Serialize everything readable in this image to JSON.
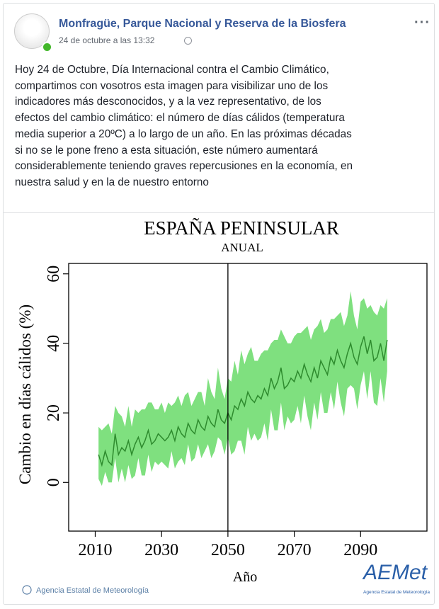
{
  "post": {
    "author": "Monfragüe, Parque Nacional y Reserva de la Biosfera",
    "date": "24 de octubre a las 13:32",
    "text_lines": [
      "Hoy 24 de Octubre, Día Internacional contra el Cambio Climático,",
      "compartimos con vosotros esta imagen para visibilizar uno de los",
      "indicadores más desconocidos, y a la vez representativo, de los",
      "efectos del cambio climático: el número de días cálidos (temperatura",
      "media superior a 20ºC) a lo largo de un año. En las próximas décadas",
      "si no se le pone freno a esta situación, este número aumentará",
      "considerablemente teniendo graves repercusiones en la economía, en",
      "nuestra salud y en la de nuestro entorno"
    ]
  },
  "chart_data": {
    "type": "line",
    "title": "ESPAÑA PENINSULAR",
    "subtitle": "ANUAL",
    "ylabel": "Cambio en días cálidos (%)",
    "xlabel": "Año",
    "footer": "Agencia Estatal de Meteorología",
    "logo": "AEMet",
    "logo_caption": "Agencia Estatal de Meteorología",
    "x": [
      2011,
      2012,
      2013,
      2014,
      2015,
      2016,
      2017,
      2018,
      2019,
      2020,
      2021,
      2022,
      2023,
      2024,
      2025,
      2026,
      2027,
      2028,
      2029,
      2030,
      2031,
      2032,
      2033,
      2034,
      2035,
      2036,
      2037,
      2038,
      2039,
      2040,
      2041,
      2042,
      2043,
      2044,
      2045,
      2046,
      2047,
      2048,
      2049,
      2050,
      2051,
      2052,
      2053,
      2054,
      2055,
      2056,
      2057,
      2058,
      2059,
      2060,
      2061,
      2062,
      2063,
      2064,
      2065,
      2066,
      2067,
      2068,
      2069,
      2070,
      2071,
      2072,
      2073,
      2074,
      2075,
      2076,
      2077,
      2078,
      2079,
      2080,
      2081,
      2082,
      2083,
      2084,
      2085,
      2086,
      2087,
      2088,
      2089,
      2090,
      2091,
      2092,
      2093,
      2094,
      2095,
      2096,
      2097,
      2098
    ],
    "values": [
      8,
      5,
      9,
      6,
      5,
      14,
      8,
      10,
      9,
      12,
      8,
      11,
      13,
      10,
      12,
      15,
      11,
      12,
      14,
      13,
      12,
      13,
      15,
      12,
      16,
      14,
      13,
      17,
      15,
      14,
      18,
      16,
      15,
      19,
      17,
      16,
      21,
      18,
      17,
      20,
      18,
      22,
      21,
      24,
      22,
      26,
      24,
      23,
      25,
      24,
      27,
      25,
      30,
      27,
      29,
      33,
      27,
      28,
      30,
      29,
      32,
      30,
      34,
      31,
      29,
      33,
      30,
      35,
      33,
      31,
      36,
      34,
      38,
      35,
      33,
      37,
      40,
      36,
      34,
      39,
      42,
      37,
      41,
      35,
      36,
      40,
      35,
      41
    ],
    "upper": [
      16,
      15,
      16,
      17,
      14,
      22,
      20,
      19,
      16,
      22,
      16,
      21,
      20,
      21,
      21,
      23,
      23,
      21,
      21,
      23,
      20,
      23,
      22,
      23,
      25,
      22,
      25,
      26,
      22,
      24,
      26,
      26,
      22,
      30,
      26,
      24,
      33,
      27,
      24,
      30,
      29,
      35,
      31,
      38,
      34,
      37,
      39,
      35,
      35,
      37,
      38,
      38,
      40,
      41,
      41,
      44,
      42,
      40,
      40,
      42,
      43,
      43,
      44,
      45,
      41,
      44,
      45,
      47,
      43,
      44,
      47,
      47,
      48,
      49,
      45,
      48,
      55,
      48,
      44,
      52,
      53,
      50,
      51,
      49,
      48,
      51,
      50,
      53
    ],
    "lower": [
      1,
      -1,
      3,
      0,
      0,
      7,
      0,
      4,
      0,
      5,
      1,
      2,
      7,
      2,
      2,
      8,
      3,
      6,
      5,
      6,
      5,
      4,
      9,
      4,
      6,
      7,
      5,
      11,
      6,
      7,
      11,
      7,
      9,
      11,
      7,
      9,
      13,
      12,
      8,
      13,
      8,
      9,
      12,
      12,
      8,
      16,
      12,
      14,
      12,
      13,
      17,
      12,
      21,
      15,
      15,
      23,
      15,
      19,
      17,
      18,
      22,
      17,
      25,
      19,
      15,
      23,
      18,
      26,
      20,
      20,
      26,
      21,
      29,
      23,
      19,
      27,
      28,
      27,
      21,
      28,
      32,
      24,
      32,
      23,
      22,
      30,
      23,
      32
    ],
    "color": "#2e8b2e",
    "band_color": "#7fe07f",
    "vline": 2050,
    "xlim": [
      2002,
      2110
    ],
    "ylim": [
      -14,
      63
    ],
    "xticks": [
      2010,
      2030,
      2050,
      2070,
      2090
    ],
    "yticks": [
      0,
      20,
      40,
      60
    ]
  }
}
